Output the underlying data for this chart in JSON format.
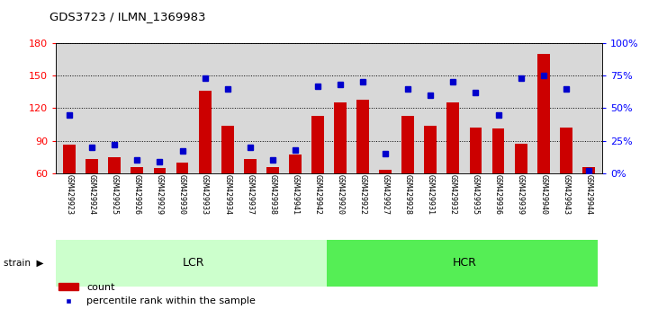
{
  "title": "GDS3723 / ILMN_1369983",
  "samples": [
    "GSM429923",
    "GSM429924",
    "GSM429925",
    "GSM429926",
    "GSM429929",
    "GSM429930",
    "GSM429933",
    "GSM429934",
    "GSM429937",
    "GSM429938",
    "GSM429941",
    "GSM429942",
    "GSM429920",
    "GSM429922",
    "GSM429927",
    "GSM429928",
    "GSM429931",
    "GSM429932",
    "GSM429935",
    "GSM429936",
    "GSM429939",
    "GSM429940",
    "GSM429943",
    "GSM429944"
  ],
  "counts": [
    86,
    73,
    75,
    66,
    65,
    70,
    136,
    104,
    73,
    66,
    77,
    113,
    125,
    128,
    63,
    113,
    104,
    125,
    102,
    101,
    87,
    170,
    102,
    66
  ],
  "percentile_ranks": [
    45,
    20,
    22,
    10,
    9,
    17,
    73,
    65,
    20,
    10,
    18,
    67,
    68,
    70,
    15,
    65,
    60,
    70,
    62,
    45,
    73,
    75,
    65,
    2
  ],
  "lcr_count": 12,
  "hcr_count": 12,
  "ylim_left": [
    60,
    180
  ],
  "ylim_right": [
    0,
    100
  ],
  "yticks_left": [
    60,
    90,
    120,
    150,
    180
  ],
  "yticks_right": [
    0,
    25,
    50,
    75,
    100
  ],
  "ytick_right_labels": [
    "0%",
    "25%",
    "50%",
    "75%",
    "100%"
  ],
  "bar_color": "#cc0000",
  "dot_color": "#0000cc",
  "bar_width": 0.55,
  "plot_bg_color": "#d8d8d8",
  "lcr_color": "#ccffcc",
  "hcr_color": "#55ee55",
  "group_bar_dark": "#333333",
  "legend_labels": [
    "count",
    "percentile rank within the sample"
  ]
}
